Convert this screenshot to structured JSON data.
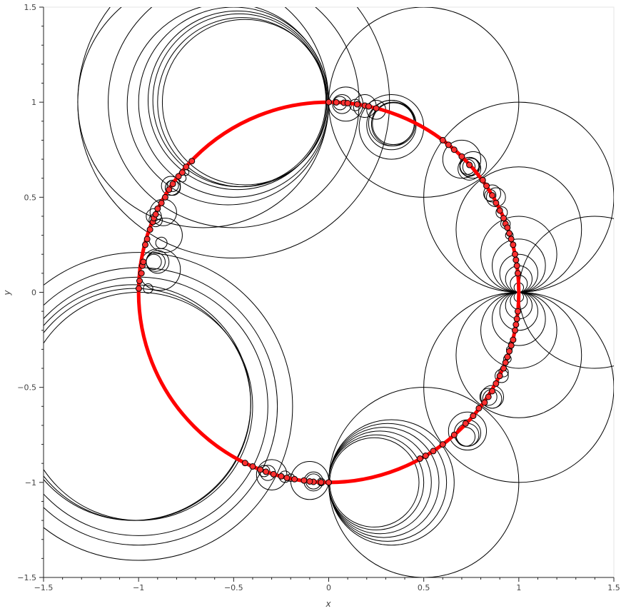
{
  "chart_data": {
    "type": "scatter",
    "title": "",
    "xlabel": "x",
    "ylabel": "y",
    "xlim": [
      -1.5,
      1.5
    ],
    "ylim": [
      -1.5,
      1.5
    ],
    "grid": false,
    "xticks": [
      "−1.5",
      "−1",
      "−0.5",
      "0",
      "0.5",
      "1",
      "1.5"
    ],
    "yticks": [
      "−1.5",
      "−1",
      "−0.5",
      "0",
      "0.5",
      "1",
      "1.5"
    ],
    "colors": {
      "unit_circle": "#ff0000",
      "circles": "#000000",
      "points_fill": "#ff3030",
      "points_edge": "#000000"
    },
    "unit_circle": {
      "center": [
        0,
        0
      ],
      "r": 1
    },
    "circles": [
      {
        "cx": -0.5,
        "cy": 1.0,
        "r": 0.5
      },
      {
        "cx": -0.5,
        "cy": 1.0,
        "r": 0.66
      },
      {
        "cx": -0.5,
        "cy": 1.0,
        "r": 0.82
      },
      {
        "cx": -0.48,
        "cy": 1.01,
        "r": 0.47
      },
      {
        "cx": -0.47,
        "cy": 1.01,
        "r": 0.455
      },
      {
        "cx": -0.455,
        "cy": 1.0,
        "r": 0.445
      },
      {
        "cx": -0.44,
        "cy": 1.0,
        "r": 0.435
      },
      {
        "cx": -0.53,
        "cy": 0.99,
        "r": 0.53
      },
      {
        "cx": -0.66,
        "cy": 1.0,
        "r": 0.66
      },
      {
        "cx": -1.0,
        "cy": -0.6,
        "r": 0.6
      },
      {
        "cx": -1.0,
        "cy": -0.6,
        "r": 0.68
      },
      {
        "cx": -1.0,
        "cy": -0.6,
        "r": 0.73
      },
      {
        "cx": -1.02,
        "cy": -0.59,
        "r": 0.61
      },
      {
        "cx": -1.03,
        "cy": -0.58,
        "r": 0.62
      },
      {
        "cx": -1.0,
        "cy": -0.6,
        "r": 0.81
      },
      {
        "cx": 0.25,
        "cy": -1.0,
        "r": 0.25
      },
      {
        "cx": 0.24,
        "cy": -1.0,
        "r": 0.235
      },
      {
        "cx": 0.27,
        "cy": -1.0,
        "r": 0.27
      },
      {
        "cx": 0.29,
        "cy": -1.0,
        "r": 0.29
      },
      {
        "cx": 0.31,
        "cy": -1.0,
        "r": 0.31
      },
      {
        "cx": 0.33,
        "cy": -1.0,
        "r": 0.33
      },
      {
        "cx": 0.5,
        "cy": -1.0,
        "r": 0.5
      },
      {
        "cx": 0.5,
        "cy": 1.0,
        "r": 0.5
      },
      {
        "cx": 1.0,
        "cy": 0.33,
        "r": 0.33
      },
      {
        "cx": 1.0,
        "cy": -0.33,
        "r": 0.33
      },
      {
        "cx": 1.0,
        "cy": 0.2,
        "r": 0.2
      },
      {
        "cx": 1.0,
        "cy": -0.2,
        "r": 0.2
      },
      {
        "cx": 1.0,
        "cy": 0.14,
        "r": 0.14
      },
      {
        "cx": 1.0,
        "cy": -0.14,
        "r": 0.14
      },
      {
        "cx": 1.0,
        "cy": 0.1,
        "r": 0.1
      },
      {
        "cx": 1.0,
        "cy": -0.1,
        "r": 0.1
      },
      {
        "cx": 1.0,
        "cy": 0.07,
        "r": 0.07
      },
      {
        "cx": 1.0,
        "cy": -0.07,
        "r": 0.07
      },
      {
        "cx": 1.0,
        "cy": 0.045,
        "r": 0.045
      },
      {
        "cx": 1.0,
        "cy": -0.045,
        "r": 0.045
      },
      {
        "cx": 1.0,
        "cy": 0.025,
        "r": 0.025
      },
      {
        "cx": 1.0,
        "cy": -0.025,
        "r": 0.025
      },
      {
        "cx": 1.4,
        "cy": 0.0,
        "r": 0.4
      },
      {
        "cx": 1.0,
        "cy": 0.5,
        "r": 0.5
      },
      {
        "cx": 1.0,
        "cy": -0.5,
        "r": 0.5
      },
      {
        "cx": 0.33,
        "cy": 0.87,
        "r": 0.17
      },
      {
        "cx": 0.33,
        "cy": 0.88,
        "r": 0.13
      },
      {
        "cx": 0.34,
        "cy": 0.885,
        "r": 0.115
      },
      {
        "cx": 0.34,
        "cy": 0.887,
        "r": 0.11
      },
      {
        "cx": 0.33,
        "cy": 0.89,
        "r": 0.12
      },
      {
        "cx": 0.09,
        "cy": 0.99,
        "r": 0.09
      },
      {
        "cx": 0.07,
        "cy": 0.99,
        "r": 0.05
      },
      {
        "cx": 0.06,
        "cy": 0.995,
        "r": 0.035
      },
      {
        "cx": 0.19,
        "cy": 0.98,
        "r": 0.06
      },
      {
        "cx": 0.25,
        "cy": 0.96,
        "r": 0.05
      },
      {
        "cx": 0.14,
        "cy": 0.985,
        "r": 0.03
      },
      {
        "cx": 0.7,
        "cy": 0.7,
        "r": 0.1
      },
      {
        "cx": 0.74,
        "cy": 0.65,
        "r": 0.06
      },
      {
        "cx": 0.74,
        "cy": 0.66,
        "r": 0.05
      },
      {
        "cx": 0.75,
        "cy": 0.66,
        "r": 0.045
      },
      {
        "cx": 0.76,
        "cy": 0.67,
        "r": 0.07
      },
      {
        "cx": 0.73,
        "cy": 0.66,
        "r": 0.04
      },
      {
        "cx": 0.86,
        "cy": 0.52,
        "r": 0.045
      },
      {
        "cx": 0.85,
        "cy": 0.51,
        "r": 0.03
      },
      {
        "cx": 0.88,
        "cy": 0.5,
        "r": 0.05
      },
      {
        "cx": 0.91,
        "cy": 0.42,
        "r": 0.03
      },
      {
        "cx": 0.93,
        "cy": 0.36,
        "r": 0.025
      },
      {
        "cx": 0.95,
        "cy": 0.3,
        "r": 0.02
      },
      {
        "cx": 0.73,
        "cy": -0.73,
        "r": 0.1
      },
      {
        "cx": 0.73,
        "cy": -0.74,
        "r": 0.07
      },
      {
        "cx": 0.73,
        "cy": -0.75,
        "r": 0.06
      },
      {
        "cx": 0.72,
        "cy": -0.76,
        "r": 0.05
      },
      {
        "cx": 0.86,
        "cy": -0.55,
        "r": 0.06
      },
      {
        "cx": 0.86,
        "cy": -0.56,
        "r": 0.05
      },
      {
        "cx": 0.84,
        "cy": -0.55,
        "r": 0.045
      },
      {
        "cx": 0.91,
        "cy": -0.44,
        "r": 0.035
      },
      {
        "cx": 0.92,
        "cy": -0.42,
        "r": 0.025
      },
      {
        "cx": 0.94,
        "cy": -0.35,
        "r": 0.02
      },
      {
        "cx": 0.95,
        "cy": -0.3,
        "r": 0.015
      },
      {
        "cx": 0.96,
        "cy": -0.27,
        "r": 0.012
      },
      {
        "cx": -0.3,
        "cy": -0.96,
        "r": 0.08
      },
      {
        "cx": -0.32,
        "cy": -0.95,
        "r": 0.04
      },
      {
        "cx": -0.34,
        "cy": -0.94,
        "r": 0.03
      },
      {
        "cx": -0.23,
        "cy": -0.97,
        "r": 0.03
      },
      {
        "cx": -0.2,
        "cy": -0.975,
        "r": 0.02
      },
      {
        "cx": -0.1,
        "cy": -0.99,
        "r": 0.1
      },
      {
        "cx": -0.08,
        "cy": -0.995,
        "r": 0.05
      },
      {
        "cx": -0.08,
        "cy": -0.995,
        "r": 0.04
      },
      {
        "cx": -0.04,
        "cy": -0.998,
        "r": 0.02
      },
      {
        "cx": -0.89,
        "cy": 0.12,
        "r": 0.11
      },
      {
        "cx": -0.9,
        "cy": 0.16,
        "r": 0.06
      },
      {
        "cx": -0.91,
        "cy": 0.16,
        "r": 0.05
      },
      {
        "cx": -0.92,
        "cy": 0.16,
        "r": 0.04
      },
      {
        "cx": -0.95,
        "cy": 0.02,
        "r": 0.025
      },
      {
        "cx": -0.86,
        "cy": 0.3,
        "r": 0.09
      },
      {
        "cx": -0.88,
        "cy": 0.26,
        "r": 0.03
      },
      {
        "cx": -0.87,
        "cy": 0.42,
        "r": 0.07
      },
      {
        "cx": -0.92,
        "cy": 0.4,
        "r": 0.04
      },
      {
        "cx": -0.91,
        "cy": 0.38,
        "r": 0.035
      },
      {
        "cx": -0.83,
        "cy": 0.56,
        "r": 0.05
      },
      {
        "cx": -0.82,
        "cy": 0.55,
        "r": 0.04
      },
      {
        "cx": -0.82,
        "cy": 0.56,
        "r": 0.03
      },
      {
        "cx": -0.77,
        "cy": 0.6,
        "r": 0.02
      },
      {
        "cx": -0.75,
        "cy": 0.63,
        "r": 0.015
      }
    ],
    "points": [
      [
        0.0,
        1.0
      ],
      [
        0.04,
        0.999
      ],
      [
        0.08,
        0.997
      ],
      [
        0.1,
        0.995
      ],
      [
        0.15,
        0.989
      ],
      [
        0.19,
        0.982
      ],
      [
        0.21,
        0.978
      ],
      [
        0.25,
        0.968
      ],
      [
        0.6,
        0.8
      ],
      [
        0.63,
        0.776
      ],
      [
        0.66,
        0.75
      ],
      [
        0.7,
        0.714
      ],
      [
        0.74,
        0.67
      ],
      [
        0.81,
        0.59
      ],
      [
        0.83,
        0.56
      ],
      [
        0.86,
        0.51
      ],
      [
        0.88,
        0.47
      ],
      [
        0.9,
        0.43
      ],
      [
        0.92,
        0.39
      ],
      [
        0.93,
        0.36
      ],
      [
        0.94,
        0.34
      ],
      [
        0.95,
        0.31
      ],
      [
        0.96,
        0.28
      ],
      [
        0.97,
        0.25
      ],
      [
        0.98,
        0.2
      ],
      [
        0.985,
        0.17
      ],
      [
        0.99,
        0.14
      ],
      [
        0.995,
        0.1
      ],
      [
        0.995,
        -0.1
      ],
      [
        0.99,
        -0.14
      ],
      [
        0.985,
        -0.17
      ],
      [
        0.98,
        -0.2
      ],
      [
        0.97,
        -0.25
      ],
      [
        0.96,
        -0.28
      ],
      [
        0.95,
        -0.31
      ],
      [
        0.94,
        -0.34
      ],
      [
        0.93,
        -0.37
      ],
      [
        0.92,
        -0.4
      ],
      [
        0.9,
        -0.44
      ],
      [
        0.88,
        -0.48
      ],
      [
        0.86,
        -0.52
      ],
      [
        0.84,
        -0.55
      ],
      [
        0.82,
        -0.58
      ],
      [
        0.79,
        -0.61
      ],
      [
        0.76,
        -0.65
      ],
      [
        0.72,
        -0.69
      ],
      [
        0.66,
        -0.75
      ],
      [
        0.6,
        -0.8
      ],
      [
        0.55,
        -0.835
      ],
      [
        0.51,
        -0.86
      ],
      [
        0.48,
        -0.875
      ],
      [
        0.0,
        -1.0
      ],
      [
        -0.04,
        -0.999
      ],
      [
        -0.08,
        -0.997
      ],
      [
        -0.1,
        -0.995
      ],
      [
        -0.13,
        -0.99
      ],
      [
        -0.18,
        -0.983
      ],
      [
        -0.22,
        -0.976
      ],
      [
        -0.25,
        -0.968
      ],
      [
        -0.29,
        -0.957
      ],
      [
        -0.33,
        -0.944
      ],
      [
        -0.36,
        -0.933
      ],
      [
        -0.4,
        -0.916
      ],
      [
        -0.44,
        -0.898
      ],
      [
        -0.999,
        0.02
      ],
      [
        -0.995,
        0.06
      ],
      [
        -0.985,
        0.1
      ],
      [
        -0.98,
        0.14
      ],
      [
        -0.975,
        0.16
      ],
      [
        -0.965,
        0.25
      ],
      [
        -0.955,
        0.28
      ],
      [
        -0.94,
        0.33
      ],
      [
        -0.925,
        0.37
      ],
      [
        -0.92,
        0.39
      ],
      [
        -0.91,
        0.41
      ],
      [
        -0.9,
        0.44
      ],
      [
        -0.88,
        0.47
      ],
      [
        -0.86,
        0.5
      ],
      [
        -0.84,
        0.54
      ],
      [
        -0.82,
        0.57
      ],
      [
        -0.79,
        0.61
      ],
      [
        -0.77,
        0.63
      ],
      [
        -0.75,
        0.66
      ],
      [
        -0.72,
        0.69
      ]
    ]
  }
}
